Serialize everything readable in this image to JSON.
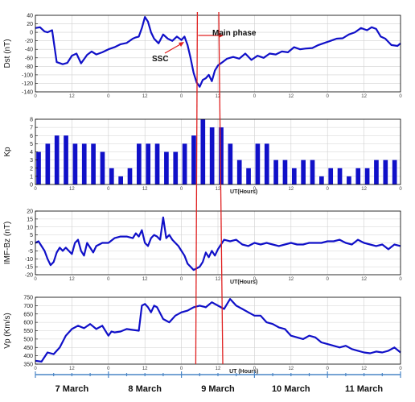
{
  "colors": {
    "series": "#1010c8",
    "marker": "#e02020",
    "grid": "#d0d0d0",
    "axis": "#000000",
    "timeline": "#4a86c6"
  },
  "chart_data": [
    {
      "type": "line",
      "ylabel": "Dst (nT)",
      "xlabel": "",
      "ylim": [
        -140,
        40
      ],
      "yticks": [
        -140,
        -120,
        -100,
        -80,
        -60,
        -40,
        -20,
        0,
        20,
        40
      ],
      "xlim": [
        0,
        120
      ],
      "xticks": [
        0,
        12,
        24,
        36,
        48,
        60,
        72,
        84,
        96,
        108,
        120
      ],
      "xticklabels": [
        "0",
        "12",
        "0",
        "12",
        "0",
        "12",
        "0",
        "12",
        "0",
        "12",
        "0"
      ],
      "grid": true,
      "x": [
        0,
        1.5,
        3,
        4,
        5.5,
        7,
        9,
        10.5,
        12,
        13.5,
        15,
        17,
        18.5,
        20,
        22,
        24,
        26,
        28,
        30,
        32,
        33,
        34,
        35,
        36,
        37,
        38,
        39,
        40.5,
        42,
        43.5,
        45,
        46.5,
        48,
        49,
        50,
        51,
        52,
        53,
        54,
        55,
        56,
        57,
        58,
        59,
        60,
        61.5,
        63,
        65,
        67,
        69,
        71,
        73,
        75,
        77,
        79,
        81,
        83,
        85,
        87,
        89,
        91,
        93,
        95,
        97,
        99,
        101,
        103,
        105,
        107,
        109,
        110.5,
        112,
        113.5,
        115,
        117,
        119,
        120
      ],
      "y": [
        10,
        12,
        2,
        0,
        5,
        -70,
        -75,
        -72,
        -55,
        -50,
        -73,
        -53,
        -45,
        -52,
        -47,
        -40,
        -35,
        -28,
        -25,
        -15,
        -12,
        -10,
        10,
        36,
        25,
        0,
        -15,
        -26,
        -5,
        -15,
        -20,
        -10,
        -18,
        -10,
        -30,
        -60,
        -95,
        -118,
        -128,
        -112,
        -108,
        -100,
        -115,
        -90,
        -78,
        -70,
        -62,
        -58,
        -62,
        -50,
        -65,
        -55,
        -60,
        -50,
        -52,
        -45,
        -47,
        -35,
        -40,
        -38,
        -37,
        -30,
        -25,
        -20,
        -15,
        -14,
        -5,
        0,
        10,
        5,
        12,
        8,
        -10,
        -15,
        -30,
        -32,
        -26
      ],
      "annotations": [
        "SSC",
        "Main phase"
      ]
    },
    {
      "type": "bar",
      "ylabel": "Kp",
      "xlabel": "UT(Hours)",
      "ylim": [
        0,
        8
      ],
      "yticks": [
        0,
        1,
        2,
        3,
        4,
        5,
        6,
        7,
        8
      ],
      "xlim": [
        0,
        120
      ],
      "xticks": [
        0,
        12,
        24,
        36,
        48,
        60,
        72,
        84,
        96,
        108,
        120
      ],
      "xticklabels": [
        "0",
        "12",
        "0",
        "12",
        "0",
        "12",
        "0",
        "12",
        "0",
        "12",
        "0"
      ],
      "grid": true,
      "bar_width_hours": 1.5,
      "x": [
        0,
        3,
        6,
        9,
        12,
        15,
        18,
        21,
        24,
        27,
        30,
        33,
        36,
        39,
        42,
        45,
        48,
        51,
        54,
        57,
        60,
        63,
        66,
        69,
        72,
        75,
        78,
        81,
        84,
        87,
        90,
        93,
        96,
        99,
        102,
        105,
        108,
        111,
        114,
        117
      ],
      "values": [
        4,
        5,
        6,
        6,
        5,
        5,
        5,
        4,
        2,
        1,
        2,
        5,
        5,
        5,
        4,
        4,
        5,
        6,
        8,
        7,
        7,
        5,
        3,
        2,
        5,
        5,
        3,
        3,
        2,
        3,
        3,
        1,
        2,
        2,
        1,
        2,
        2,
        3,
        3,
        3
      ]
    },
    {
      "type": "line",
      "ylabel": "IMF-Bz (nT)",
      "xlabel": "UT(Hours)",
      "ylim": [
        -20,
        20
      ],
      "yticks": [
        -20,
        -15,
        -10,
        -5,
        0,
        5,
        10,
        15,
        20
      ],
      "xlim": [
        0,
        120
      ],
      "xticks": [
        0,
        12,
        24,
        36,
        48,
        60,
        72,
        84,
        96,
        108,
        120
      ],
      "xticklabels": [
        "0",
        "12",
        "0",
        "12",
        "0",
        "12",
        "0",
        "12",
        "0",
        "12",
        "0"
      ],
      "grid": true,
      "x": [
        0,
        1,
        2,
        3,
        4,
        5,
        6,
        7,
        8,
        9,
        10,
        11,
        12,
        13,
        14,
        15,
        16,
        17,
        18,
        19,
        20,
        21,
        22,
        24,
        26,
        28,
        30,
        32,
        33,
        34,
        35,
        36,
        37,
        38,
        39,
        40,
        41,
        42,
        43,
        44,
        45,
        46,
        47,
        48,
        49,
        50,
        51,
        52,
        53,
        54,
        55,
        56,
        57,
        58,
        59,
        60,
        62,
        64,
        66,
        68,
        70,
        72,
        74,
        76,
        78,
        80,
        82,
        84,
        86,
        88,
        90,
        92,
        94,
        96,
        98,
        100,
        102,
        104,
        106,
        108,
        110,
        112,
        114,
        116,
        118,
        120
      ],
      "y": [
        0,
        1,
        -2,
        -5,
        -10,
        -14,
        -12,
        -6,
        -3,
        -5,
        -3,
        -5,
        -7,
        0,
        2,
        -5,
        -8,
        0,
        -3,
        -6,
        -2,
        -1,
        0,
        0,
        3,
        4,
        4,
        3,
        6,
        4,
        8,
        0,
        -2,
        3,
        5,
        4,
        2,
        16,
        3,
        5,
        2,
        0,
        -2,
        -5,
        -8,
        -13,
        -15,
        -17,
        -16,
        -15,
        -12,
        -6,
        -9,
        -5,
        -8,
        -4,
        2,
        1,
        2,
        -1,
        -2,
        0,
        -1,
        0,
        -1,
        -2,
        -1,
        0,
        -1,
        -1,
        0,
        0,
        0,
        1,
        1,
        2,
        0,
        -1,
        2,
        0,
        -1,
        -2,
        -1,
        -4,
        -1,
        -2
      ],
      "annotations": []
    },
    {
      "type": "line",
      "ylabel": "Vp (Km/s)",
      "xlabel": "UT (Hours)",
      "ylim": [
        350,
        750
      ],
      "yticks": [
        350,
        400,
        450,
        500,
        550,
        600,
        650,
        700,
        750
      ],
      "xlim": [
        0,
        120
      ],
      "xticks": [
        0,
        12,
        24,
        36,
        48,
        60,
        72,
        84,
        96,
        108,
        120
      ],
      "xticklabels": [
        "0",
        "12",
        "0",
        "12",
        "0",
        "12",
        "0",
        "12",
        "0",
        "12",
        "0"
      ],
      "grid": true,
      "x": [
        0,
        2,
        4,
        6,
        8,
        10,
        12,
        14,
        16,
        18,
        20,
        22,
        24,
        25,
        26,
        28,
        30,
        32,
        34,
        35,
        36,
        37,
        38,
        39,
        40,
        42,
        44,
        46,
        48,
        50,
        52,
        54,
        56,
        58,
        60,
        62,
        64,
        66,
        68,
        70,
        72,
        74,
        76,
        78,
        80,
        82,
        84,
        86,
        88,
        90,
        92,
        94,
        96,
        98,
        100,
        102,
        104,
        106,
        108,
        110,
        112,
        114,
        116,
        118,
        120
      ],
      "y": [
        370,
        365,
        420,
        410,
        450,
        520,
        560,
        580,
        565,
        590,
        560,
        580,
        520,
        545,
        540,
        545,
        560,
        555,
        550,
        700,
        710,
        690,
        660,
        700,
        690,
        620,
        600,
        640,
        660,
        670,
        690,
        700,
        690,
        720,
        700,
        680,
        740,
        700,
        680,
        660,
        640,
        640,
        600,
        590,
        570,
        560,
        520,
        510,
        500,
        520,
        510,
        480,
        470,
        460,
        450,
        460,
        440,
        430,
        420,
        415,
        425,
        420,
        430,
        450,
        420
      ]
    }
  ],
  "markers": {
    "lines_hours": [
      53.5,
      60
    ]
  },
  "days": [
    "7 March",
    "8  March",
    "9 March",
    "10 March",
    "11 March"
  ]
}
